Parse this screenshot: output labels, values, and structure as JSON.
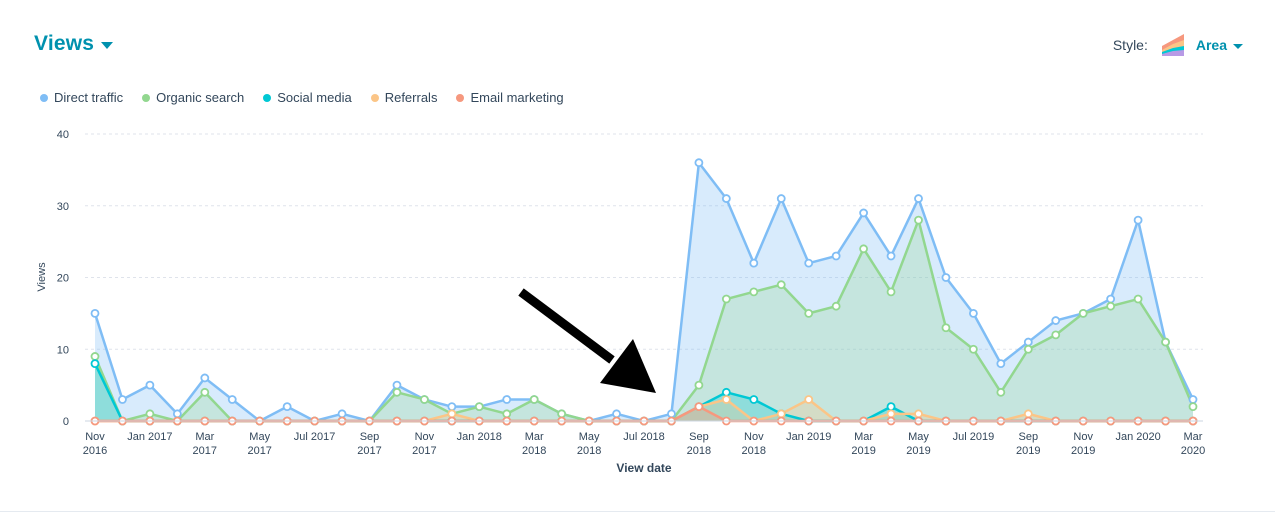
{
  "header": {
    "title": "Views"
  },
  "style_control": {
    "label": "Style:",
    "value": "Area",
    "icon": "area-chart-icon"
  },
  "chart_data": {
    "type": "area",
    "xlabel": "View date",
    "ylabel": "Views",
    "ylim": [
      0,
      40
    ],
    "yticks": [
      0,
      10,
      20,
      30,
      40
    ],
    "grid": true,
    "legend_position": "top-left",
    "x": [
      "Nov 2016",
      "Dec 2016",
      "Jan 2017",
      "Feb 2017",
      "Mar 2017",
      "Apr 2017",
      "May 2017",
      "Jun 2017",
      "Jul 2017",
      "Aug 2017",
      "Sep 2017",
      "Oct 2017",
      "Nov 2017",
      "Dec 2017",
      "Jan 2018",
      "Feb 2018",
      "Mar 2018",
      "Apr 2018",
      "May 2018",
      "Jun 2018",
      "Jul 2018",
      "Aug 2018",
      "Sep 2018",
      "Oct 2018",
      "Nov 2018",
      "Dec 2018",
      "Jan 2019",
      "Feb 2019",
      "Mar 2019",
      "Apr 2019",
      "May 2019",
      "Jun 2019",
      "Jul 2019",
      "Aug 2019",
      "Sep 2019",
      "Oct 2019",
      "Nov 2019",
      "Dec 2019",
      "Jan 2020",
      "Feb 2020",
      "Mar 2020"
    ],
    "tick_labels": [
      [
        "Nov",
        "2016"
      ],
      [
        "Jan 2017",
        ""
      ],
      [
        "Mar",
        "2017"
      ],
      [
        "May",
        "2017"
      ],
      [
        "Jul 2017",
        ""
      ],
      [
        "Sep",
        "2017"
      ],
      [
        "Nov",
        "2017"
      ],
      [
        "Jan 2018",
        ""
      ],
      [
        "Mar",
        "2018"
      ],
      [
        "May",
        "2018"
      ],
      [
        "Jul 2018",
        ""
      ],
      [
        "Sep",
        "2018"
      ],
      [
        "Nov",
        "2018"
      ],
      [
        "Jan 2019",
        ""
      ],
      [
        "Mar",
        "2019"
      ],
      [
        "May",
        "2019"
      ],
      [
        "Jul 2019",
        ""
      ],
      [
        "Sep",
        "2019"
      ],
      [
        "Nov",
        "2019"
      ],
      [
        "Jan 2020",
        ""
      ],
      [
        "Mar",
        "2020"
      ]
    ],
    "series": [
      {
        "name": "Direct traffic",
        "color": "#7fbdf5",
        "values": [
          15,
          3,
          5,
          1,
          6,
          3,
          0,
          2,
          0,
          1,
          0,
          5,
          3,
          2,
          2,
          3,
          3,
          1,
          0,
          1,
          0,
          1,
          36,
          31,
          22,
          31,
          22,
          23,
          29,
          23,
          31,
          20,
          15,
          8,
          11,
          14,
          15,
          17,
          28,
          11,
          3
        ]
      },
      {
        "name": "Organic search",
        "color": "#92d78f",
        "values": [
          9,
          0,
          1,
          0,
          4,
          0,
          0,
          0,
          0,
          0,
          0,
          4,
          3,
          1,
          2,
          1,
          3,
          1,
          0,
          0,
          0,
          0,
          5,
          17,
          18,
          19,
          15,
          16,
          24,
          18,
          28,
          13,
          10,
          4,
          10,
          12,
          15,
          16,
          17,
          11,
          2
        ]
      },
      {
        "name": "Social media",
        "color": "#00c8d4",
        "values": [
          8,
          0,
          0,
          0,
          0,
          0,
          0,
          0,
          0,
          0,
          0,
          0,
          0,
          0,
          0,
          0,
          0,
          0,
          0,
          0,
          0,
          0,
          2,
          4,
          3,
          1,
          0,
          0,
          0,
          2,
          0,
          0,
          0,
          0,
          0,
          0,
          0,
          0,
          0,
          0,
          0
        ]
      },
      {
        "name": "Referrals",
        "color": "#fbc587",
        "values": [
          0,
          0,
          0,
          0,
          0,
          0,
          0,
          0,
          0,
          0,
          0,
          0,
          0,
          1,
          0,
          0,
          0,
          0,
          0,
          0,
          0,
          0,
          2,
          3,
          0,
          1,
          3,
          0,
          0,
          1,
          1,
          0,
          0,
          0,
          1,
          0,
          0,
          0,
          0,
          0,
          0
        ]
      },
      {
        "name": "Email marketing",
        "color": "#f6987e",
        "values": [
          0,
          0,
          0,
          0,
          0,
          0,
          0,
          0,
          0,
          0,
          0,
          0,
          0,
          0,
          0,
          0,
          0,
          0,
          0,
          0,
          0,
          0,
          2,
          0,
          0,
          0,
          0,
          0,
          0,
          0,
          0,
          0,
          0,
          0,
          0,
          0,
          0,
          0,
          0,
          0,
          0
        ]
      }
    ]
  }
}
